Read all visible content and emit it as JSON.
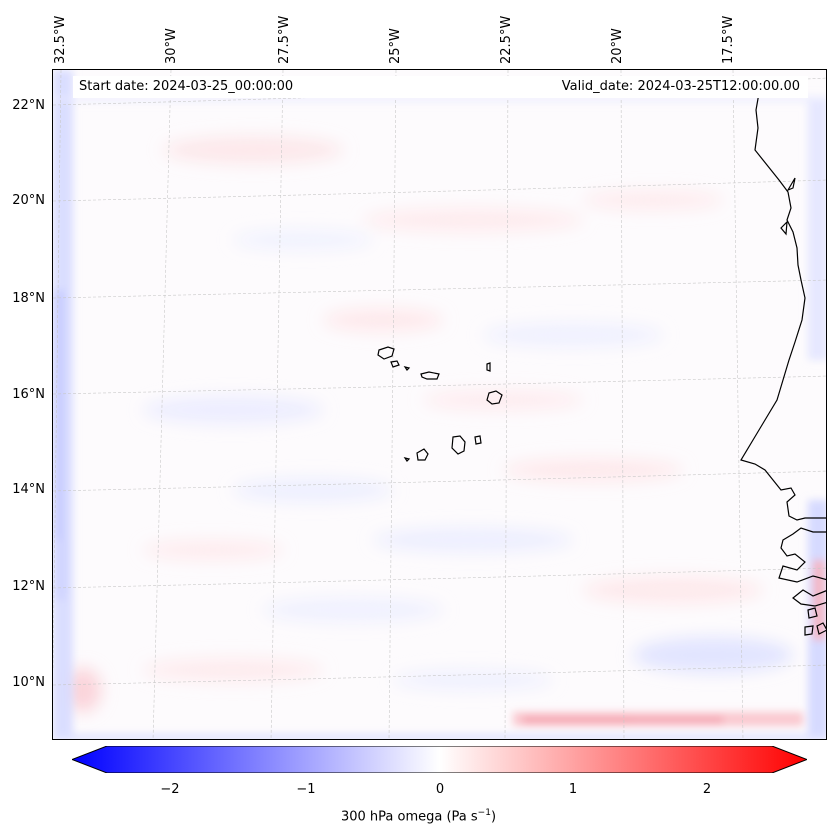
{
  "map": {
    "start_date": "Start date: 2024-03-25_00:00:00",
    "valid_date": "Valid_date: 2024-03-25T12:00:00.00",
    "lon_labels": [
      "32.5°W",
      "30°W",
      "27.5°W",
      "25°W",
      "22.5°W",
      "20°W",
      "17.5°W"
    ],
    "lat_labels": [
      "22°N",
      "20°N",
      "18°N",
      "16°N",
      "14°N",
      "12°N",
      "10°N"
    ],
    "features": [
      "Cape Verde islands",
      "West African coastline"
    ]
  },
  "colorbar": {
    "ticks": [
      "−2",
      "−1",
      "0",
      "1",
      "2"
    ],
    "range": [
      -2.6,
      2.6
    ],
    "label_prefix": "300 hPa omega (Pa s",
    "label_exp": "−1",
    "label_suffix": ")",
    "colors": {
      "min": "#0000ff",
      "mid": "#ffffff",
      "max": "#ff0000"
    }
  }
}
